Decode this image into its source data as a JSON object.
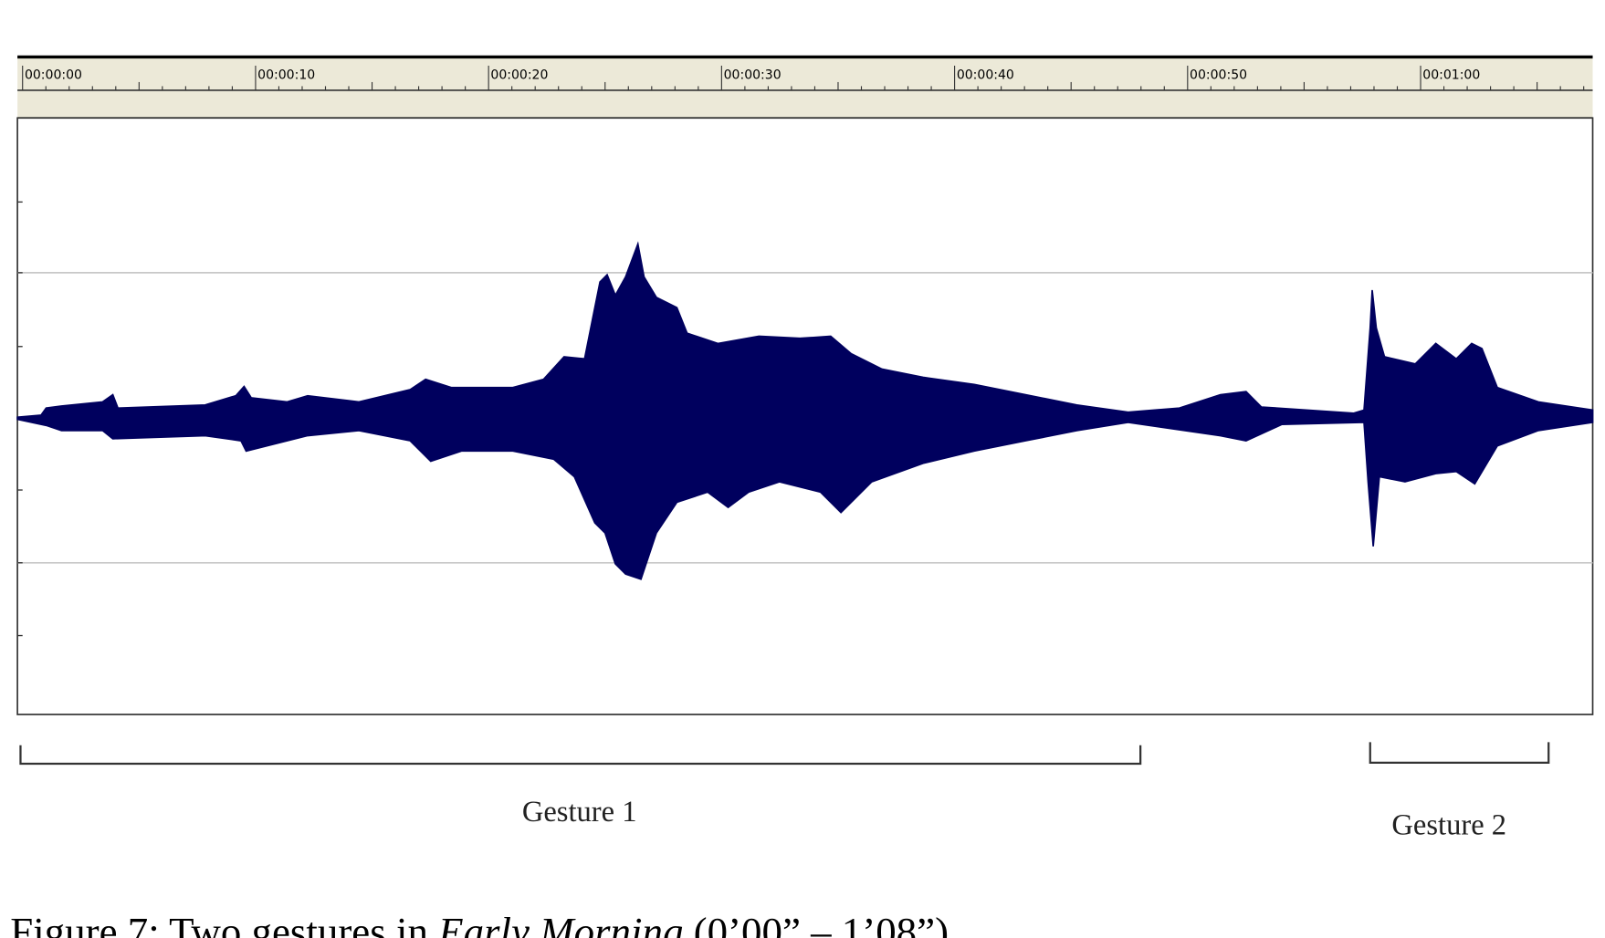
{
  "ruler": {
    "labels": [
      "00:00:00",
      "00:00:10",
      "00:00:20",
      "00:00:30",
      "00:00:40",
      "00:00:50",
      "00:01:00"
    ]
  },
  "gestures": [
    {
      "label": "Gesture 1"
    },
    {
      "label": "Gesture 2"
    }
  ],
  "caption": {
    "prefix": "Figure 7: Two gestures in ",
    "title": "Early Morning",
    "suffix": " (0’00” – 1’08”)"
  }
}
